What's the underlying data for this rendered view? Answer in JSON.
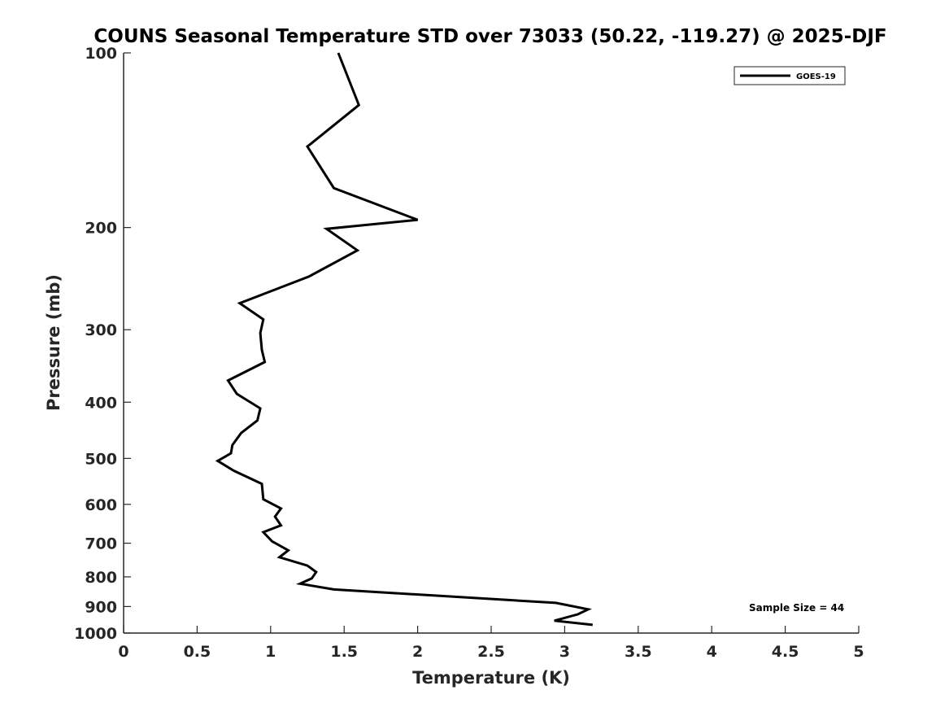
{
  "chart_data": {
    "type": "line",
    "title": "COUNS Seasonal Temperature STD over 73033 (50.22, -119.27) @ 2025-DJF",
    "xlabel": "Temperature (K)",
    "ylabel": "Pressure (mb)",
    "xlim": [
      0,
      5
    ],
    "ylim": [
      100,
      1000
    ],
    "y_scale": "log",
    "y_reversed": true,
    "x_ticks": [
      "0",
      "0.5",
      "1",
      "1.5",
      "2",
      "2.5",
      "3",
      "3.5",
      "4",
      "4.5",
      "5"
    ],
    "x_tick_values": [
      0,
      0.5,
      1,
      1.5,
      2,
      2.5,
      3,
      3.5,
      4,
      4.5,
      5
    ],
    "y_ticks": [
      "100",
      "200",
      "300",
      "400",
      "500",
      "600",
      "700",
      "800",
      "900",
      "1000"
    ],
    "y_tick_values": [
      100,
      200,
      300,
      400,
      500,
      600,
      700,
      800,
      900,
      1000
    ],
    "grid": false,
    "legend_position": "top-right",
    "series": [
      {
        "name": "GOES-19",
        "color": "#000000",
        "x": [
          1.46,
          1.6,
          1.25,
          1.43,
          2.0,
          1.38,
          1.59,
          1.26,
          0.79,
          0.95,
          0.93,
          0.94,
          0.96,
          0.71,
          0.77,
          0.93,
          0.91,
          0.8,
          0.74,
          0.73,
          0.64,
          0.75,
          0.94,
          0.95,
          1.07,
          1.03,
          1.07,
          0.95,
          1.01,
          1.12,
          1.06,
          1.25,
          1.31,
          1.28,
          1.2,
          1.43,
          2.94,
          3.16,
          3.09,
          2.93,
          3.19
        ],
        "y": [
          100,
          123,
          145,
          171,
          194,
          201,
          219,
          243,
          270,
          288,
          304,
          325,
          341,
          367,
          387,
          410,
          430,
          452,
          474,
          490,
          505,
          525,
          553,
          588,
          610,
          630,
          652,
          670,
          695,
          720,
          740,
          765,
          785,
          805,
          822,
          841,
          887,
          910,
          928,
          952,
          968
        ]
      }
    ],
    "annotations": [
      "Sample Size = 44"
    ]
  }
}
